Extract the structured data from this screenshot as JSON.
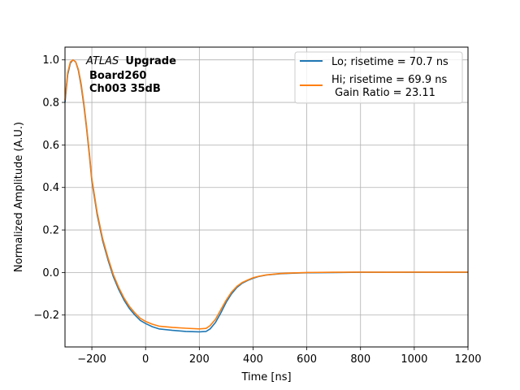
{
  "chart_data": {
    "type": "line",
    "xlabel": "Time [ns]",
    "ylabel": "Normalized Amplitude (A.U.)",
    "xlim": [
      -300,
      1200
    ],
    "ylim": [
      -0.35,
      1.06
    ],
    "xticks": [
      -200,
      0,
      200,
      400,
      600,
      800,
      1000,
      1200
    ],
    "xtick_labels": [
      "−200",
      "0",
      "200",
      "400",
      "600",
      "800",
      "1000",
      "1200"
    ],
    "yticks": [
      -0.2,
      0.0,
      0.2,
      0.4,
      0.6,
      0.8,
      1.0
    ],
    "ytick_labels": [
      "−0.2",
      "0.0",
      "0.2",
      "0.4",
      "0.6",
      "0.8",
      "1.0"
    ],
    "grid": true,
    "legend_position": "top-right",
    "annotation": {
      "experiment_italic": "ATLAS",
      "experiment_bold": "Upgrade",
      "line2": "Board260",
      "line3": "Ch003 35dB"
    },
    "series": [
      {
        "name": "Lo; risetime = 70.7 ns",
        "color": "#1f77b4",
        "x": [
          -300,
          -290,
          -280,
          -270,
          -260,
          -250,
          -240,
          -230,
          -220,
          -210,
          -200,
          -180,
          -160,
          -140,
          -120,
          -100,
          -80,
          -60,
          -40,
          -20,
          0,
          25,
          50,
          100,
          150,
          200,
          225,
          240,
          260,
          280,
          300,
          320,
          340,
          360,
          380,
          400,
          420,
          450,
          500,
          550,
          600,
          700,
          800,
          900,
          1000,
          1100,
          1200
        ],
        "y": [
          0.8,
          0.93,
          0.985,
          1.0,
          0.99,
          0.95,
          0.88,
          0.79,
          0.68,
          0.56,
          0.43,
          0.27,
          0.15,
          0.06,
          -0.02,
          -0.08,
          -0.13,
          -0.17,
          -0.2,
          -0.225,
          -0.24,
          -0.255,
          -0.265,
          -0.272,
          -0.277,
          -0.279,
          -0.277,
          -0.265,
          -0.235,
          -0.19,
          -0.14,
          -0.1,
          -0.07,
          -0.05,
          -0.037,
          -0.027,
          -0.019,
          -0.012,
          -0.006,
          -0.003,
          -0.001,
          0.0,
          0.001,
          0.001,
          0.001,
          0.001,
          0.001
        ]
      },
      {
        "name": "Hi; risetime = 69.9 ns\n Gain Ratio = 23.11",
        "color": "#ff7f0e",
        "x": [
          -300,
          -290,
          -280,
          -270,
          -260,
          -250,
          -240,
          -230,
          -220,
          -210,
          -200,
          -180,
          -160,
          -140,
          -120,
          -100,
          -80,
          -60,
          -40,
          -20,
          0,
          25,
          50,
          100,
          150,
          200,
          225,
          240,
          260,
          280,
          300,
          320,
          340,
          360,
          380,
          400,
          420,
          450,
          500,
          550,
          600,
          700,
          800,
          900,
          1000,
          1100,
          1200
        ],
        "y": [
          0.81,
          0.94,
          0.99,
          1.0,
          0.99,
          0.955,
          0.89,
          0.8,
          0.69,
          0.57,
          0.44,
          0.28,
          0.16,
          0.07,
          -0.01,
          -0.07,
          -0.12,
          -0.16,
          -0.19,
          -0.215,
          -0.23,
          -0.243,
          -0.252,
          -0.258,
          -0.262,
          -0.265,
          -0.263,
          -0.25,
          -0.22,
          -0.175,
          -0.13,
          -0.092,
          -0.065,
          -0.047,
          -0.035,
          -0.025,
          -0.018,
          -0.011,
          -0.005,
          -0.002,
          0.0,
          0.001,
          0.002,
          0.001,
          0.002,
          0.001,
          0.002
        ]
      }
    ]
  }
}
